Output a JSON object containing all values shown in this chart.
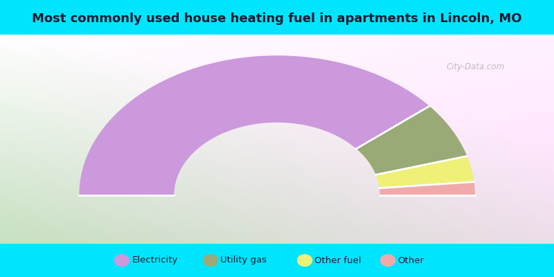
{
  "title": "Most commonly used house heating fuel in apartments in Lincoln, MO",
  "title_fontsize": 13,
  "title_color": "#1a1a2e",
  "cyan_color": "#00e5ff",
  "legend_labels": [
    "Electricity",
    "Utility gas",
    "Other fuel",
    "Other"
  ],
  "legend_colors": [
    "#cc99dd",
    "#99aa77",
    "#eef077",
    "#f0aaaa"
  ],
  "values": [
    78,
    13,
    6,
    3
  ],
  "donut_colors": [
    "#cc99dd",
    "#99aa77",
    "#eef077",
    "#f0aaaa"
  ],
  "watermark": "City-Data.com",
  "outer_r": 1.0,
  "inner_r": 0.52,
  "grad_color_topleft": "#c8e6c0",
  "grad_color_topright": "#f0ece8",
  "grad_color_bottomleft": "#a8d4a0",
  "grad_color_bottomright": "#e8e4f0"
}
